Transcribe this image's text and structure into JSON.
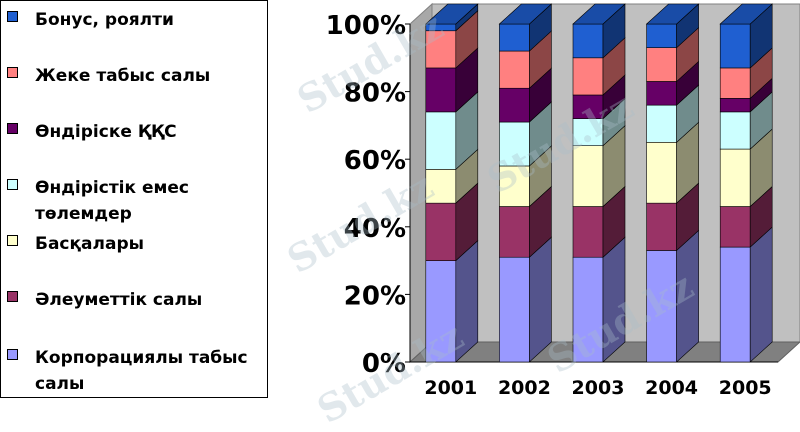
{
  "legend": {
    "items": [
      {
        "label": "Бонус, роялти",
        "color": "#1f5fd1"
      },
      {
        "label": "Жеке табыс салы",
        "color": "#ff8080"
      },
      {
        "label": "Өндіріске ҚҚС",
        "color": "#660066"
      },
      {
        "label": "Өндірістік емес төлемдер",
        "color": "#ccffff"
      },
      {
        "label": "Басқалары",
        "color": "#ffffcc"
      },
      {
        "label": "Әлеуметтік салы",
        "color": "#993366"
      },
      {
        "label": "Корпорациялы табыс салы",
        "color": "#9999ff"
      }
    ]
  },
  "watermark": "Stud.kz",
  "chart_data": {
    "type": "bar",
    "stacked": true,
    "percent": true,
    "categories": [
      "2001",
      "2002",
      "2003",
      "2004",
      "2005"
    ],
    "ylim": [
      0,
      100
    ],
    "yticks": [
      "0%",
      "20%",
      "40%",
      "60%",
      "80%",
      "100%"
    ],
    "grid": false,
    "legend_position": "left",
    "series": [
      {
        "name": "Корпорациялы табыс салы",
        "color": "#9999ff",
        "values": [
          30,
          31,
          31,
          33,
          34
        ]
      },
      {
        "name": "Әлеуметтік салы",
        "color": "#993366",
        "values": [
          17,
          15,
          15,
          14,
          12
        ]
      },
      {
        "name": "Басқалары",
        "color": "#ffffcc",
        "values": [
          10,
          12,
          18,
          18,
          17
        ]
      },
      {
        "name": "Өндірістік емес төлемдер",
        "color": "#ccffff",
        "values": [
          17,
          13,
          8,
          11,
          11
        ]
      },
      {
        "name": "Өндіріске ҚҚС",
        "color": "#660066",
        "values": [
          13,
          10,
          7,
          7,
          4
        ]
      },
      {
        "name": "Жеке табыс салы",
        "color": "#ff8080",
        "values": [
          11,
          11,
          11,
          10,
          9
        ]
      },
      {
        "name": "Бонус, роялти",
        "color": "#1f5fd1",
        "values": [
          2,
          8,
          10,
          7,
          13
        ]
      }
    ]
  }
}
